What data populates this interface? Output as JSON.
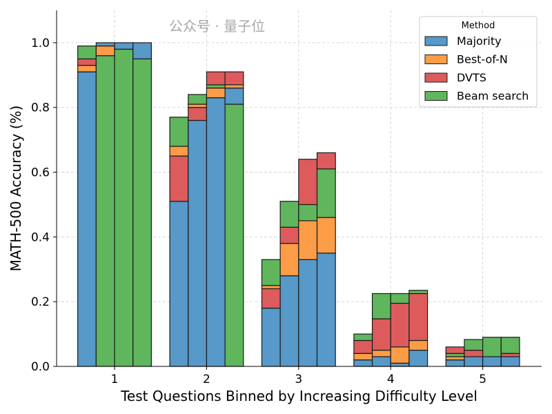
{
  "chart_data": {
    "type": "bar",
    "title": "",
    "xlabel": "Test Questions Binned by Increasing Difficulty Level",
    "ylabel": "MATH-500 Accuracy (%)",
    "xlim": [
      0.37,
      5.64
    ],
    "ylim": [
      0,
      1.1
    ],
    "x_ticks": [
      1,
      2,
      3,
      4,
      5
    ],
    "y_ticks": [
      0.0,
      0.2,
      0.4,
      0.6,
      0.8,
      1.0
    ],
    "y_tick_labels": [
      "0.0",
      "0.2",
      "0.4",
      "0.6",
      "0.8",
      "1.0"
    ],
    "grid": true,
    "legend": {
      "title": "Method",
      "placement": "top-right"
    },
    "series": [
      {
        "name": "Majority",
        "color": "#5799c8"
      },
      {
        "name": "Best-of-N",
        "color": "#fd9c47"
      },
      {
        "name": "DVTS",
        "color": "#dd5b5c"
      },
      {
        "name": "Beam search",
        "color": "#5fb65c"
      }
    ],
    "bars_note_units": "each bar lists stacked segments bottom-up as [method, top accuracy]",
    "groups": [
      {
        "level": 1,
        "bars": [
          [
            [
              "Majority",
              0.91
            ],
            [
              "Best-of-N",
              0.93
            ],
            [
              "DVTS",
              0.95
            ],
            [
              "Beam search",
              0.99
            ]
          ],
          [
            [
              "Beam search",
              0.96
            ],
            [
              "Best-of-N",
              0.99
            ],
            [
              "Majority",
              1.0
            ]
          ],
          [
            [
              "Beam search",
              0.98
            ],
            [
              "Majority",
              1.0
            ]
          ],
          [
            [
              "Beam search",
              0.95
            ],
            [
              "Majority",
              1.0
            ]
          ]
        ]
      },
      {
        "level": 2,
        "bars": [
          [
            [
              "Majority",
              0.51
            ],
            [
              "DVTS",
              0.65
            ],
            [
              "Best-of-N",
              0.68
            ],
            [
              "Beam search",
              0.77
            ]
          ],
          [
            [
              "Majority",
              0.76
            ],
            [
              "DVTS",
              0.8
            ],
            [
              "Best-of-N",
              0.81
            ],
            [
              "Beam search",
              0.84
            ]
          ],
          [
            [
              "Majority",
              0.83
            ],
            [
              "Best-of-N",
              0.86
            ],
            [
              "Beam search",
              0.87
            ],
            [
              "DVTS",
              0.91
            ]
          ],
          [
            [
              "Beam search",
              0.81
            ],
            [
              "Majority",
              0.86
            ],
            [
              "Best-of-N",
              0.87
            ],
            [
              "DVTS",
              0.91
            ]
          ]
        ]
      },
      {
        "level": 3,
        "bars": [
          [
            [
              "Majority",
              0.18
            ],
            [
              "DVTS",
              0.24
            ],
            [
              "Best-of-N",
              0.25
            ],
            [
              "Beam search",
              0.33
            ]
          ],
          [
            [
              "Majority",
              0.28
            ],
            [
              "Best-of-N",
              0.38
            ],
            [
              "DVTS",
              0.43
            ],
            [
              "Beam search",
              0.51
            ]
          ],
          [
            [
              "Majority",
              0.33
            ],
            [
              "Best-of-N",
              0.45
            ],
            [
              "Beam search",
              0.5
            ],
            [
              "DVTS",
              0.64
            ]
          ],
          [
            [
              "Majority",
              0.35
            ],
            [
              "Best-of-N",
              0.46
            ],
            [
              "Beam search",
              0.61
            ],
            [
              "DVTS",
              0.66
            ]
          ]
        ]
      },
      {
        "level": 4,
        "bars": [
          [
            [
              "Majority",
              0.02
            ],
            [
              "Best-of-N",
              0.04
            ],
            [
              "DVTS",
              0.08
            ],
            [
              "Beam search",
              0.1
            ]
          ],
          [
            [
              "Majority",
              0.03
            ],
            [
              "Best-of-N",
              0.05
            ],
            [
              "DVTS",
              0.147
            ],
            [
              "Beam search",
              0.225
            ]
          ],
          [
            [
              "Majority",
              0.01
            ],
            [
              "Best-of-N",
              0.06
            ],
            [
              "DVTS",
              0.195
            ],
            [
              "Beam search",
              0.225
            ]
          ],
          [
            [
              "Majority",
              0.05
            ],
            [
              "Best-of-N",
              0.08
            ],
            [
              "DVTS",
              0.225
            ],
            [
              "Beam search",
              0.235
            ]
          ]
        ]
      },
      {
        "level": 5,
        "bars": [
          [
            [
              "Majority",
              0.02
            ],
            [
              "Best-of-N",
              0.03
            ],
            [
              "Beam search",
              0.04
            ],
            [
              "DVTS",
              0.06
            ]
          ],
          [
            [
              "Majority",
              0.03
            ],
            [
              "DVTS",
              0.05
            ],
            [
              "Beam search",
              0.083
            ]
          ],
          [
            [
              "Majority",
              0.03
            ],
            [
              "Beam search",
              0.09
            ]
          ],
          [
            [
              "Majority",
              0.03
            ],
            [
              "DVTS",
              0.04
            ],
            [
              "Beam search",
              0.09
            ]
          ]
        ]
      }
    ]
  },
  "watermark": "公众号 · 量子位"
}
